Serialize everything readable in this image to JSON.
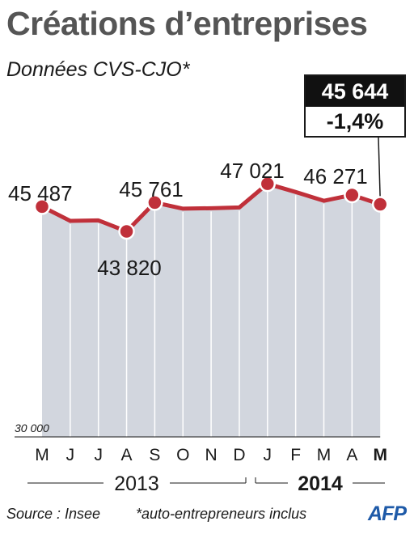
{
  "title": "Créations d’entreprises",
  "subtitle": "Données CVS-CJO*",
  "callout": {
    "value": "45 644",
    "change": "-1,4%"
  },
  "footer": {
    "source": "Source : Insee",
    "note": "*auto-entrepreneurs inclus",
    "logo": "AFP"
  },
  "colors": {
    "line": "#c0303a",
    "area": "#d2d6de",
    "grid": "#ffffff",
    "title": "#555555",
    "logo": "#1e5aa8"
  },
  "chart_data": {
    "type": "area",
    "categories": [
      "M",
      "J",
      "J",
      "A",
      "S",
      "O",
      "N",
      "D",
      "J",
      "F",
      "M",
      "A",
      "M"
    ],
    "bold_categories": [
      12
    ],
    "values": [
      45487,
      44530,
      44560,
      43820,
      45761,
      45350,
      45380,
      45430,
      47021,
      46470,
      45880,
      46271,
      45644
    ],
    "point_markers": [
      0,
      3,
      4,
      8,
      11,
      12
    ],
    "data_labels": [
      {
        "index": 0,
        "text": "45 487"
      },
      {
        "index": 3,
        "text": "43 820"
      },
      {
        "index": 4,
        "text": "45 761"
      },
      {
        "index": 8,
        "text": "47 021"
      },
      {
        "index": 11,
        "text": "46 271"
      }
    ],
    "y_min_label": "30 000",
    "ylim": [
      30000,
      48500
    ],
    "years": [
      {
        "text": "2013",
        "bold": false
      },
      {
        "text": "2014",
        "bold": true
      }
    ]
  }
}
